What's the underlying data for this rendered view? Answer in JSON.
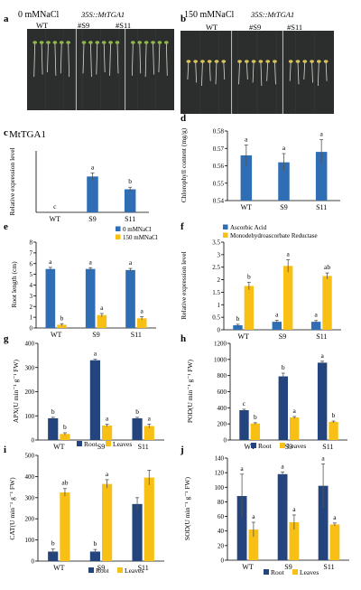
{
  "colors": {
    "blue": "#2f6db5",
    "yellow": "#f8bf14",
    "navy": "#24447d",
    "plate": "#2b2e2d",
    "plate_light": "#393b3a"
  },
  "photos": [
    {
      "letter": "a",
      "condition": "0 mMNaCl",
      "transgene": "35S::MtTGA1",
      "lines": [
        "WT",
        "#S9",
        "#S11"
      ]
    },
    {
      "letter": "b",
      "condition": "150 mMNaCl",
      "transgene": "35S::MtTGA1",
      "lines": [
        "WT",
        "#S9",
        "#S11"
      ]
    }
  ],
  "chart_data": [
    {
      "panel": "c",
      "type": "bar",
      "title": "MtTGA1",
      "categories": [
        "WT",
        "S9",
        "S11"
      ],
      "series": [
        {
          "values": [
            0.0,
            0.7,
            0.45
          ],
          "errors": [
            0,
            0.07,
            0.04
          ],
          "letters": [
            "c",
            "a",
            "b"
          ]
        }
      ],
      "ylabel": "Relative expression level",
      "ylim": [
        0,
        1.2
      ],
      "yticks": [],
      "show_yticks": false,
      "legend": []
    },
    {
      "panel": "d",
      "type": "bar",
      "title": "",
      "categories": [
        "WT",
        "S9",
        "S11"
      ],
      "series": [
        {
          "values": [
            0.566,
            0.562,
            0.568
          ],
          "errors": [
            0.006,
            0.005,
            0.007
          ],
          "letters": [
            "a",
            "a",
            "a"
          ]
        }
      ],
      "ylabel": "Chlorophyll content (mg/g)",
      "ylim": [
        0.54,
        0.58
      ],
      "yticks": [
        "0.54",
        "0.55",
        "0.56",
        "0.57",
        "0.58"
      ],
      "show_yticks": true,
      "legend": []
    },
    {
      "panel": "e",
      "type": "bar",
      "title": "",
      "categories": [
        "WT",
        "S9",
        "S11"
      ],
      "series": [
        {
          "name": "0 mMNaCl",
          "values": [
            5.5,
            5.5,
            5.4
          ],
          "errors": [
            0.15,
            0.12,
            0.15
          ],
          "letters": [
            "a",
            "a",
            "a"
          ]
        },
        {
          "name": "150 mMNaCl",
          "values": [
            0.3,
            1.2,
            0.9
          ],
          "errors": [
            0.1,
            0.15,
            0.15
          ],
          "letters": [
            "b",
            "a",
            "a"
          ]
        }
      ],
      "ylabel": "Root length (cm)",
      "ylim": [
        0,
        8
      ],
      "yticks": [
        "0",
        "1",
        "2",
        "3",
        "4",
        "5",
        "6",
        "7",
        "8"
      ],
      "show_yticks": true,
      "legend": [
        "0 mMNaCl",
        "150 mMNaCl"
      ]
    },
    {
      "panel": "f",
      "type": "bar",
      "title": "",
      "categories": [
        "WT",
        "S9",
        "S11"
      ],
      "series": [
        {
          "name": "Ascorbic Acid",
          "values": [
            0.18,
            0.32,
            0.32
          ],
          "errors": [
            0.04,
            0.06,
            0.05
          ],
          "letters": [
            "b",
            "a",
            "a"
          ]
        },
        {
          "name": "Monodehydroascorbate Reductase",
          "values": [
            1.75,
            2.55,
            2.15
          ],
          "errors": [
            0.15,
            0.25,
            0.12
          ],
          "letters": [
            "b",
            "a",
            "ab"
          ]
        }
      ],
      "ylabel": "Relative expression level",
      "ylim": [
        0,
        3.5
      ],
      "yticks": [
        "0",
        "0.5",
        "1",
        "1.5",
        "2",
        "2.5",
        "3",
        "3.5"
      ],
      "show_yticks": true,
      "legend": [
        "Ascorbic Acid",
        "Monodehydroascorbate Reductase"
      ]
    },
    {
      "panel": "g",
      "type": "bar",
      "title": "",
      "categories": [
        "WT",
        "S9",
        "S11"
      ],
      "series": [
        {
          "name": "Root",
          "values": [
            90,
            330,
            90
          ],
          "errors": [
            4,
            4,
            4
          ],
          "letters": [
            "b",
            "a",
            "b"
          ]
        },
        {
          "name": "Leaves",
          "values": [
            25,
            60,
            58
          ],
          "errors": [
            5,
            5,
            8
          ],
          "letters": [
            "b",
            "a",
            "a"
          ]
        }
      ],
      "ylabel": "APX(U min⁻¹ g⁻¹ FW)",
      "ylim": [
        0,
        400
      ],
      "yticks": [
        "0",
        "100",
        "200",
        "300",
        "400"
      ],
      "show_yticks": true,
      "legend": [
        "Root",
        "Leaves"
      ]
    },
    {
      "panel": "h",
      "type": "bar",
      "title": "",
      "categories": [
        "WT",
        "S9",
        "S11"
      ],
      "series": [
        {
          "name": "Root",
          "values": [
            370,
            790,
            960
          ],
          "errors": [
            12,
            40,
            18
          ],
          "letters": [
            "c",
            "b",
            "a"
          ]
        },
        {
          "name": "Leaves",
          "values": [
            205,
            280,
            225
          ],
          "errors": [
            10,
            12,
            10
          ],
          "letters": [
            "b",
            "a",
            "b"
          ]
        }
      ],
      "ylabel": "POD(U min⁻¹ g⁻¹ FW)",
      "ylim": [
        0,
        1200
      ],
      "yticks": [
        "0",
        "200",
        "400",
        "600",
        "800",
        "1000",
        "1200"
      ],
      "show_yticks": true,
      "legend": [
        "Root",
        "Leaves"
      ]
    },
    {
      "panel": "i",
      "type": "bar",
      "title": "",
      "categories": [
        "WT",
        "S9",
        "S11"
      ],
      "series": [
        {
          "name": "Root",
          "values": [
            45,
            45,
            270
          ],
          "errors": [
            12,
            10,
            30
          ],
          "letters": [
            "b",
            "b",
            ""
          ]
        },
        {
          "name": "Leaves",
          "values": [
            325,
            365,
            395
          ],
          "errors": [
            18,
            20,
            35
          ],
          "letters": [
            "ab",
            "a",
            ""
          ]
        }
      ],
      "ylabel": "CAT(U min⁻¹ g⁻¹ FW)",
      "ylim": [
        0,
        500
      ],
      "yticks": [
        "0",
        "100",
        "200",
        "300",
        "400",
        "500"
      ],
      "show_yticks": true,
      "legend": [
        "Root",
        "Leaves"
      ]
    },
    {
      "panel": "j",
      "type": "bar",
      "title": "",
      "categories": [
        "WT",
        "S9",
        "S11"
      ],
      "series": [
        {
          "name": "Root",
          "values": [
            88,
            118,
            102
          ],
          "errors": [
            30,
            3,
            30
          ],
          "letters": [
            "a",
            "a",
            "a"
          ]
        },
        {
          "name": "Leaves",
          "values": [
            42,
            52,
            49
          ],
          "errors": [
            10,
            10,
            2
          ],
          "letters": [
            "a",
            "a",
            "a"
          ]
        }
      ],
      "ylabel": "SOD(U min⁻¹ g⁻¹ FW)",
      "ylim": [
        0,
        140
      ],
      "yticks": [
        "0",
        "20",
        "40",
        "60",
        "80",
        "100",
        "120",
        "140"
      ],
      "show_yticks": true,
      "legend": [
        "Root",
        "Leaves"
      ]
    }
  ]
}
